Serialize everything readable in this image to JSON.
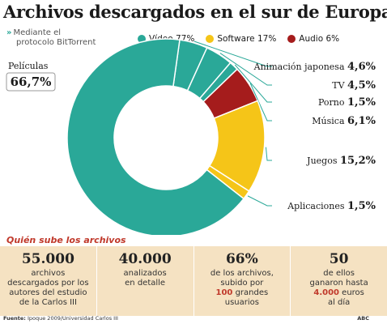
{
  "title": "Archivos descargados en el sur de Europa",
  "subtitle_line1": "Mediante el",
  "subtitle_line2": "protocolo BitTorrent",
  "legend": [
    {
      "label": "Vídeo 77%",
      "color": "#2aa898"
    },
    {
      "label": "Software 17%",
      "color": "#f5c518"
    },
    {
      "label": "Audio 6%",
      "color": "#a51c1c"
    }
  ],
  "colors": {
    "video": "#2aa898",
    "software": "#f5c518",
    "audio": "#a51c1c",
    "leader": "#2aa898"
  },
  "chart_data": {
    "type": "pie",
    "series": [
      {
        "name": "Animación japonesa",
        "value": 4.6,
        "value_label": "4,6%",
        "group": "video"
      },
      {
        "name": "TV",
        "value": 4.5,
        "value_label": "4,5%",
        "group": "video"
      },
      {
        "name": "Porno",
        "value": 1.5,
        "value_label": "1,5%",
        "group": "video"
      },
      {
        "name": "Música",
        "value": 6.1,
        "value_label": "6,1%",
        "group": "audio"
      },
      {
        "name": "Juegos",
        "value": 15.2,
        "value_label": "15,2%",
        "group": "software"
      },
      {
        "name": "Aplicaciones",
        "value": 1.5,
        "value_label": "1,5%",
        "group": "software"
      },
      {
        "name": "Películas",
        "value": 66.7,
        "value_label": "66,7%",
        "group": "video"
      }
    ]
  },
  "bottom_heading": "Quién sube los archivos",
  "stats": [
    {
      "value": "55.000",
      "text1": "archivos",
      "text2": "descargados por los",
      "text3": "autores del estudio",
      "text4": "de la Carlos III"
    },
    {
      "value": "40.000",
      "text1": "analizados",
      "text2": "en detalle"
    },
    {
      "value": "66%",
      "text1": "de los archivos,",
      "text2": "subido por",
      "text3_highlight": "100",
      "text3_rest": " grandes",
      "text4": "usuarios"
    },
    {
      "value": "50",
      "text1": "de ellos",
      "text2": "ganaron hasta",
      "text3_highlight": "4.000",
      "text3_rest": " euros",
      "text4": "al día"
    }
  ],
  "source_label": "Fuente:",
  "source_text": " Ipoque 2009/Universidad Carlos III",
  "brand": "ABC"
}
